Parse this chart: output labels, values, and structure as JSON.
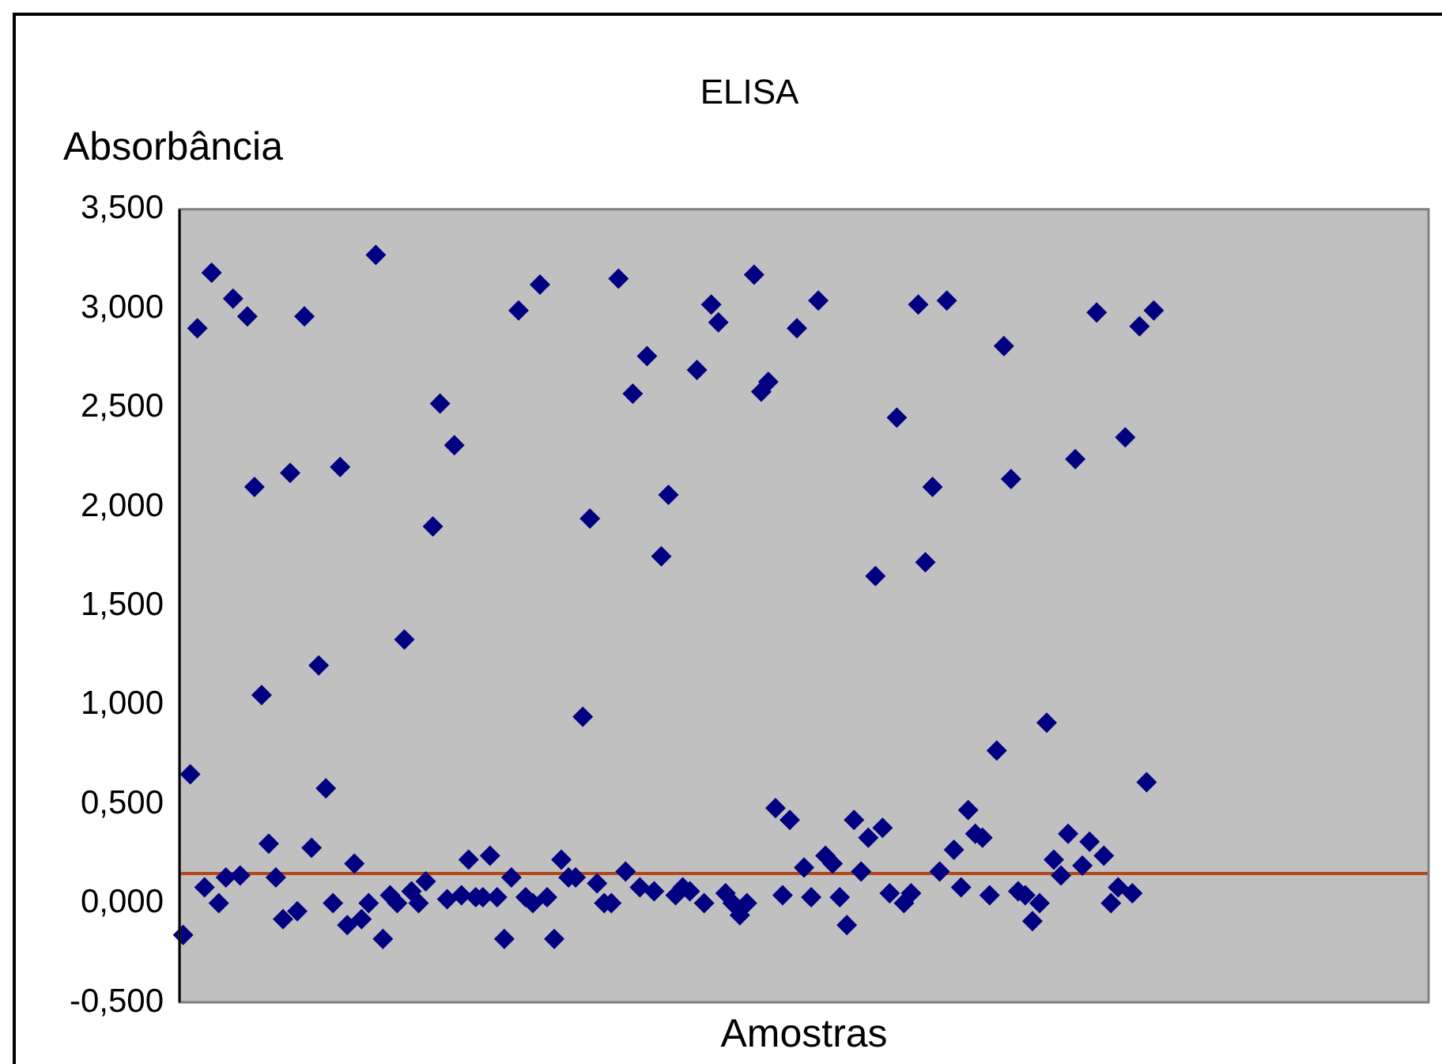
{
  "chart_data": {
    "type": "scatter",
    "title": "ELISA",
    "xlabel": "Amostras",
    "ylabel": "Absorbância",
    "categories": [
      null,
      null,
      null,
      null,
      null,
      null,
      null,
      null,
      null,
      null,
      null,
      null,
      null,
      null,
      null,
      null,
      null,
      null,
      null,
      null,
      null,
      null,
      null,
      null,
      null,
      null,
      null,
      null,
      null,
      null,
      null,
      null,
      null,
      null,
      null,
      null,
      null,
      null,
      null,
      null,
      null,
      null,
      null,
      null,
      null,
      null,
      null,
      null,
      null,
      null,
      null,
      null,
      null,
      null,
      null,
      null,
      null,
      null,
      null,
      null,
      null,
      null,
      null,
      null,
      null,
      null,
      null,
      null,
      null,
      null,
      null,
      null,
      null,
      null,
      null,
      null,
      null,
      null,
      null,
      null,
      null,
      null,
      null,
      null,
      null,
      null,
      null,
      null,
      null,
      null,
      null,
      null,
      null,
      null,
      null,
      null,
      null,
      null,
      null,
      null,
      null,
      null,
      null,
      null,
      null,
      null,
      null,
      null,
      null,
      null,
      null,
      null,
      null,
      null,
      null,
      null,
      null,
      null,
      null,
      null,
      null,
      null,
      null,
      null,
      null,
      null,
      null,
      null,
      null,
      null,
      null,
      null,
      null,
      null,
      null,
      null,
      null,
      null,
      null,
      null,
      null,
      null,
      null,
      null,
      null,
      null,
      null,
      null,
      null,
      null,
      null,
      null,
      null,
      null,
      null,
      null,
      null,
      null,
      null,
      null,
      null,
      null,
      null,
      null,
      null,
      null,
      null,
      null,
      null,
      null,
      null,
      null,
      null,
      null,
      null
    ],
    "series": [
      {
        "color": "#000080",
        "values": [
          -0.16,
          0.65,
          2.9,
          0.08,
          3.18,
          0.0,
          0.13,
          3.05,
          0.14,
          2.96,
          2.1,
          1.05,
          0.3,
          0.13,
          -0.08,
          2.17,
          -0.04,
          2.96,
          0.28,
          1.2,
          0.58,
          0.0,
          2.2,
          -0.11,
          0.2,
          -0.08,
          0.0,
          3.27,
          -0.18,
          0.04,
          0.0,
          1.33,
          0.06,
          0.0,
          0.11,
          1.9,
          2.52,
          0.02,
          2.31,
          0.04,
          0.22,
          0.03,
          0.03,
          0.24,
          0.03,
          -0.18,
          0.13,
          2.99,
          0.03,
          0.0,
          3.12,
          0.03,
          -0.18,
          0.22,
          0.13,
          0.13,
          0.94,
          1.94,
          0.1,
          0.0,
          0.0,
          3.15,
          0.16,
          2.57,
          0.08,
          2.76,
          0.06,
          1.75,
          2.06,
          0.04,
          0.08,
          0.06,
          2.69,
          0.0,
          3.02,
          2.93,
          0.05,
          0.0,
          -0.06,
          0.0,
          3.17,
          2.58,
          2.63,
          0.48,
          0.04,
          0.42,
          2.9,
          0.18,
          0.03,
          3.04,
          0.24,
          0.2,
          0.03,
          -0.11,
          0.42,
          0.16,
          0.33,
          1.65,
          0.38,
          0.05,
          2.45,
          0.0,
          0.05,
          3.02,
          1.72,
          2.1,
          0.16,
          3.04,
          0.27,
          0.08,
          0.47,
          0.35,
          0.33,
          0.04,
          0.77,
          2.81,
          2.14,
          0.06,
          0.04,
          -0.09,
          0.0,
          0.91,
          0.22,
          0.14,
          0.35,
          2.24,
          0.19,
          0.31,
          2.98,
          0.24,
          0.0,
          0.08,
          2.35,
          0.05,
          2.91,
          0.61,
          2.99,
          null,
          null,
          null,
          null,
          null,
          null,
          null,
          null,
          null,
          null,
          null,
          null,
          null,
          null,
          null,
          null,
          null,
          null,
          null,
          null,
          null,
          null,
          null,
          null,
          null,
          null,
          null,
          null,
          null,
          null,
          null,
          null,
          null,
          null,
          null,
          null,
          null,
          null
        ]
      }
    ],
    "ylim": [
      -0.5,
      3.5
    ],
    "yticks": [
      {
        "value": -0.5,
        "label": "-0,500"
      },
      {
        "value": 0,
        "label": "0,000"
      },
      {
        "value": 0.5,
        "label": "0,500"
      },
      {
        "value": 1,
        "label": "1,000"
      },
      {
        "value": 1.5,
        "label": "1,500"
      },
      {
        "value": 2,
        "label": "2,000"
      },
      {
        "value": 2.5,
        "label": "2,500"
      },
      {
        "value": 3,
        "label": "3,000"
      },
      {
        "value": 3.5,
        "label": "3,500"
      }
    ],
    "ref_lines": [
      {
        "axis": "y",
        "value": 0.15,
        "color": "#b5461a"
      }
    ],
    "marker": "diamond",
    "grid": false,
    "legend": false,
    "tick_labels": "y"
  }
}
